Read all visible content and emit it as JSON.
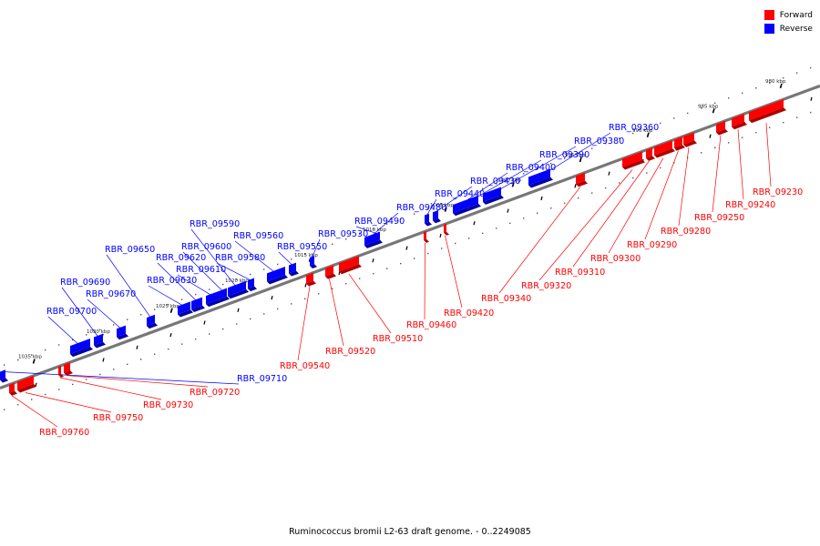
{
  "legend": {
    "forward_label": "Forward",
    "reverse_label": "Reverse",
    "forward_color": "#ff0000",
    "reverse_color": "#0000ff"
  },
  "caption": "Ruminococcus bromii L2-63 draft genome. - 0..2249085",
  "axis_kbp_labels": [
    "980 kbp",
    "985 kbp",
    "990 kbp",
    "995 kbp",
    "1000 kbp",
    "1005 kbp",
    "1010 kbp",
    "1015 kbp",
    "1020 kbp",
    "1025 kbp",
    "1030 kbp",
    "1035 kbp"
  ],
  "reverse_genes": [
    "RBR_09360",
    "RBR_09380",
    "RBR_09390",
    "RBR_09400",
    "RBR_09430",
    "RBR_09440",
    "RBR_09480",
    "RBR_09490",
    "RBR_09530",
    "RBR_09550",
    "RBR_09560",
    "RBR_09580",
    "RBR_09590",
    "RBR_09600",
    "RBR_09610",
    "RBR_09620",
    "RBR_09630",
    "RBR_09650",
    "RBR_09670",
    "RBR_09690",
    "RBR_09700",
    "RBR_09710"
  ],
  "forward_genes": [
    "RBR_09230",
    "RBR_09240",
    "RBR_09250",
    "RBR_09280",
    "RBR_09290",
    "RBR_09300",
    "RBR_09310",
    "RBR_09320",
    "RBR_09340",
    "RBR_09420",
    "RBR_09460",
    "RBR_09510",
    "RBR_09520",
    "RBR_09540",
    "RBR_09720",
    "RBR_09730",
    "RBR_09750",
    "RBR_09760"
  ]
}
